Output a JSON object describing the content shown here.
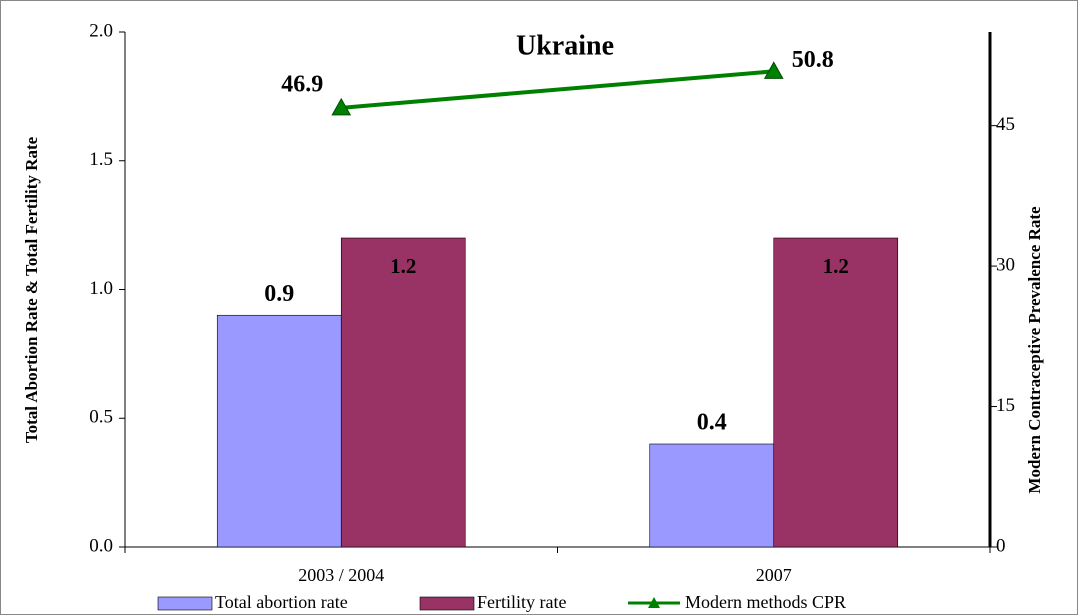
{
  "chart_data": {
    "type": "bar",
    "title": "Ukraine",
    "categories": [
      "2003 / 2004",
      "2007"
    ],
    "y_label": "Total Abortion Rate & Total Fertility Rate",
    "y2_label": "Modern Contraceptive Prevalence Rate",
    "series": [
      {
        "name": "Total abortion rate",
        "color": "#9999ff",
        "values": [
          0.9,
          0.4
        ]
      },
      {
        "name": "Fertility rate",
        "color": "#993366",
        "values": [
          1.2,
          1.2
        ]
      },
      {
        "name": "Modern methods CPR",
        "color": "#008000",
        "type": "line",
        "axis": "y2",
        "values": [
          46.9,
          50.8
        ]
      }
    ],
    "ylim": [
      0,
      2
    ],
    "yticks": [
      {
        "value": 0,
        "label": "0.0"
      },
      0.5,
      {
        "value": 1,
        "label": "1.0"
      },
      1.5,
      {
        "value": 2,
        "label": "2.0"
      }
    ],
    "y2lim": [
      0,
      55
    ],
    "y2ticks": [
      0,
      15,
      30,
      45
    ],
    "legend": "bottom"
  }
}
